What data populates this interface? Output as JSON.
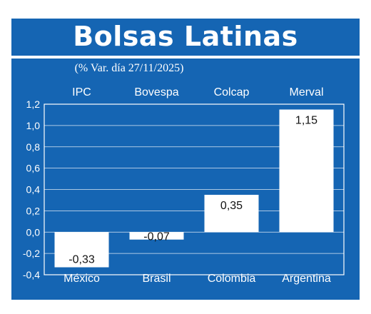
{
  "chart_data": {
    "type": "bar",
    "title": "Bolsas Latinas",
    "subtitle": "(% Var. día 27/11/2025)",
    "indices": [
      "IPC",
      "Bovespa",
      "Colcap",
      "Merval"
    ],
    "categories": [
      "México",
      "Brasil",
      "Colombia",
      "Argentina"
    ],
    "values": [
      -0.33,
      -0.07,
      0.35,
      1.15
    ],
    "value_labels": [
      "-0,33",
      "-0,07",
      "0,35",
      "1,15"
    ],
    "ylim": [
      -0.4,
      1.2
    ],
    "yticks": [
      1.2,
      1.0,
      0.8,
      0.6,
      0.4,
      0.2,
      0.0,
      -0.2,
      -0.4
    ],
    "ytick_labels": [
      "1,2",
      "1,0",
      "0,8",
      "0,6",
      "0,4",
      "0,2",
      "0,0",
      "-0,2",
      "-0,4"
    ],
    "grid": true,
    "colors": {
      "background": "#1565b3",
      "bar": "#ffffff",
      "text": "#ffffff"
    }
  }
}
